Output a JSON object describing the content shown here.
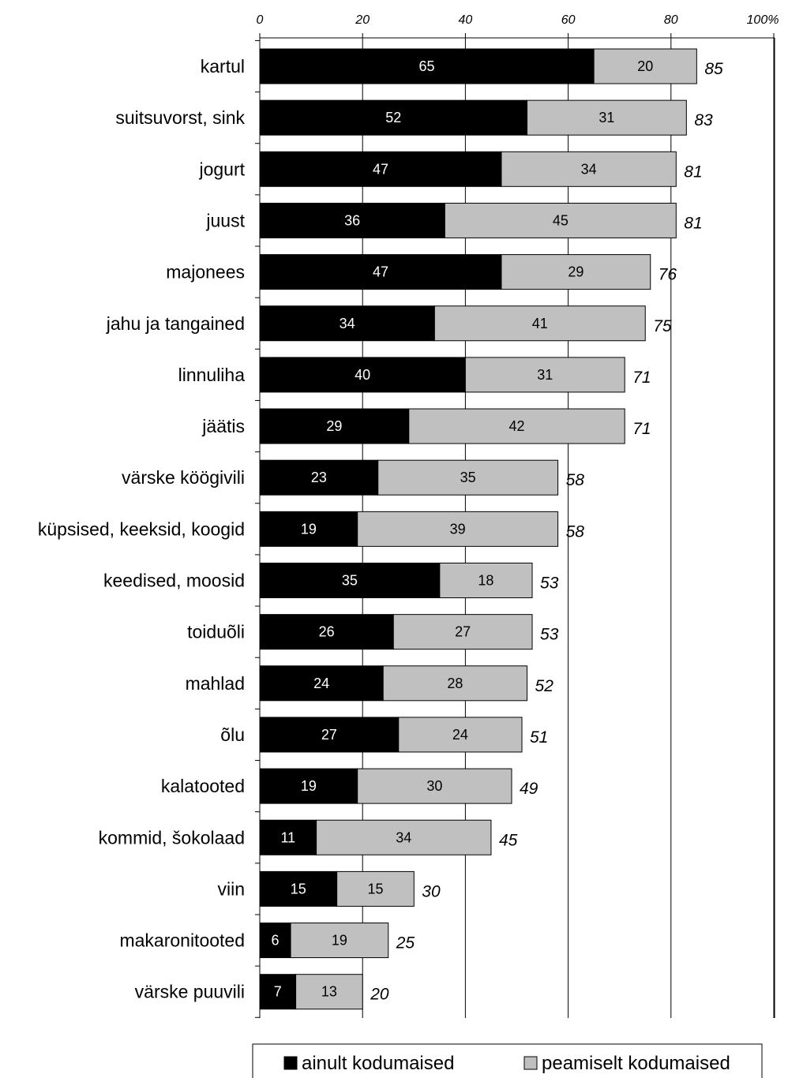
{
  "chart_data": {
    "type": "bar",
    "orientation": "horizontal",
    "stacked": true,
    "categories": [
      "kartul",
      "suitsuvorst, sink",
      "jogurt",
      "juust",
      "majonees",
      "jahu ja tangained",
      "linnuliha",
      "jäätis",
      "värske köögivili",
      "küpsised, keeksid, koogid",
      "keedised, moosid",
      "toiduõli",
      "mahlad",
      "õlu",
      "kalatooted",
      "kommid, šokolaad",
      "viin",
      "makaronitooted",
      "värske puuvili"
    ],
    "series": [
      {
        "name": "ainult kodumaised",
        "color": "#000000",
        "values": [
          65,
          52,
          47,
          36,
          47,
          34,
          40,
          29,
          23,
          19,
          35,
          26,
          24,
          27,
          19,
          11,
          15,
          6,
          7
        ]
      },
      {
        "name": "peamiselt kodumaised",
        "color": "#c0c0c0",
        "values": [
          20,
          31,
          34,
          45,
          29,
          41,
          31,
          42,
          35,
          39,
          18,
          27,
          28,
          24,
          30,
          34,
          15,
          19,
          13
        ]
      }
    ],
    "totals": [
      85,
      83,
      81,
      81,
      76,
      75,
      71,
      71,
      58,
      58,
      53,
      53,
      52,
      51,
      49,
      45,
      30,
      25,
      20
    ],
    "xticks": [
      "0",
      "20",
      "40",
      "60",
      "80",
      "100%"
    ],
    "xlim": [
      0,
      100
    ],
    "x_axis_position": "top",
    "grid": "vertical",
    "legend_position": "bottom"
  }
}
